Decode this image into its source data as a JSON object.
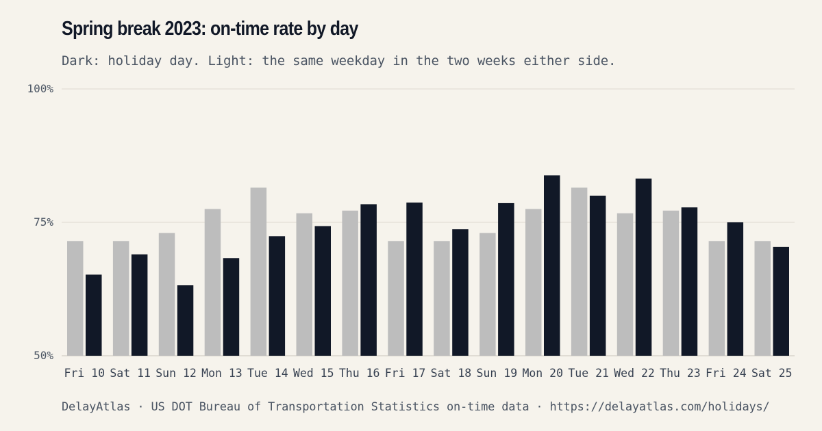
{
  "title": "Spring break 2023: on-time rate by day",
  "subtitle": "Dark: holiday day. Light: the same weekday in the two weeks either side.",
  "footer": "DelayAtlas · US DOT Bureau of Transportation Statistics on-time data · https://delayatlas.com/holidays/",
  "colors": {
    "background": "#f6f3ec",
    "baseline": "#bdbdbd",
    "holiday": "#111827",
    "gridline": "#e6e2da"
  },
  "chart_data": {
    "type": "bar",
    "categories": [
      "Fri 10",
      "Sat 11",
      "Sun 12",
      "Mon 13",
      "Tue 14",
      "Wed 15",
      "Thu 16",
      "Fri 17",
      "Sat 18",
      "Sun 19",
      "Mon 20",
      "Tue 21",
      "Wed 22",
      "Thu 23",
      "Fri 24",
      "Sat 25"
    ],
    "series": [
      {
        "key": "baseline",
        "values": [
          71.5,
          71.5,
          73.0,
          77.5,
          81.5,
          76.7,
          77.2,
          71.5,
          71.5,
          73.0,
          77.5,
          81.5,
          76.7,
          77.2,
          71.5,
          71.5
        ]
      },
      {
        "key": "holiday",
        "values": [
          65.2,
          69.0,
          63.2,
          68.3,
          72.4,
          74.3,
          78.4,
          78.7,
          73.7,
          78.6,
          83.8,
          80.0,
          83.2,
          77.8,
          75.0,
          70.4
        ]
      }
    ],
    "yticks": [
      50,
      75,
      100
    ],
    "ytick_labels": [
      "50%",
      "75%",
      "100%"
    ],
    "ylim": [
      50,
      100
    ],
    "grid": true,
    "legend": "none"
  }
}
